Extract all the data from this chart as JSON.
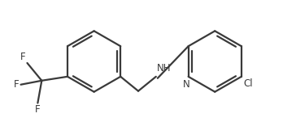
{
  "bg_color": "#ffffff",
  "line_color": "#3a3a3a",
  "text_color": "#3a3a3a",
  "line_width": 1.6,
  "font_size": 8.5,
  "figsize": [
    3.64,
    1.51
  ],
  "dpi": 100,
  "xlim": [
    0,
    364
  ],
  "ylim": [
    0,
    151
  ]
}
